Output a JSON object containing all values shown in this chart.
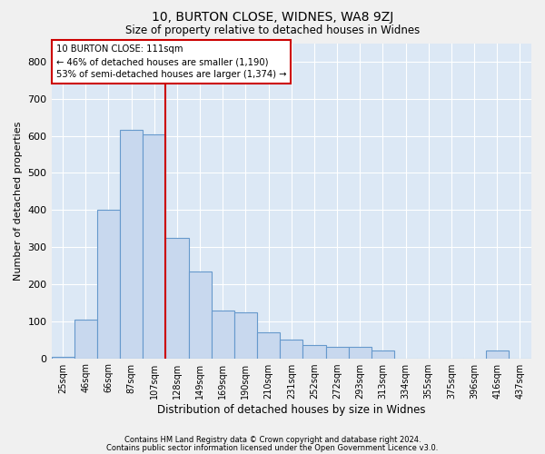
{
  "title1": "10, BURTON CLOSE, WIDNES, WA8 9ZJ",
  "title2": "Size of property relative to detached houses in Widnes",
  "xlabel": "Distribution of detached houses by size in Widnes",
  "ylabel": "Number of detached properties",
  "footer1": "Contains HM Land Registry data © Crown copyright and database right 2024.",
  "footer2": "Contains public sector information licensed under the Open Government Licence v3.0.",
  "annotation_line1": "10 BURTON CLOSE: 111sqm",
  "annotation_line2": "← 46% of detached houses are smaller (1,190)",
  "annotation_line3": "53% of semi-detached houses are larger (1,374) →",
  "bar_labels": [
    "25sqm",
    "46sqm",
    "66sqm",
    "87sqm",
    "107sqm",
    "128sqm",
    "149sqm",
    "169sqm",
    "190sqm",
    "210sqm",
    "231sqm",
    "252sqm",
    "272sqm",
    "293sqm",
    "313sqm",
    "334sqm",
    "355sqm",
    "375sqm",
    "396sqm",
    "416sqm",
    "437sqm"
  ],
  "bar_values": [
    5,
    105,
    400,
    615,
    605,
    325,
    235,
    130,
    125,
    70,
    50,
    35,
    30,
    30,
    20,
    0,
    0,
    0,
    0,
    20,
    0
  ],
  "bar_color": "#c8d8ee",
  "bar_edge_color": "#6699cc",
  "vline_x_index": 4.5,
  "vline_color": "#cc0000",
  "ylim": [
    0,
    850
  ],
  "yticks": [
    0,
    100,
    200,
    300,
    400,
    500,
    600,
    700,
    800
  ],
  "bg_color": "#dce8f5",
  "grid_color": "#ffffff",
  "fig_bg_color": "#f0f0f0"
}
